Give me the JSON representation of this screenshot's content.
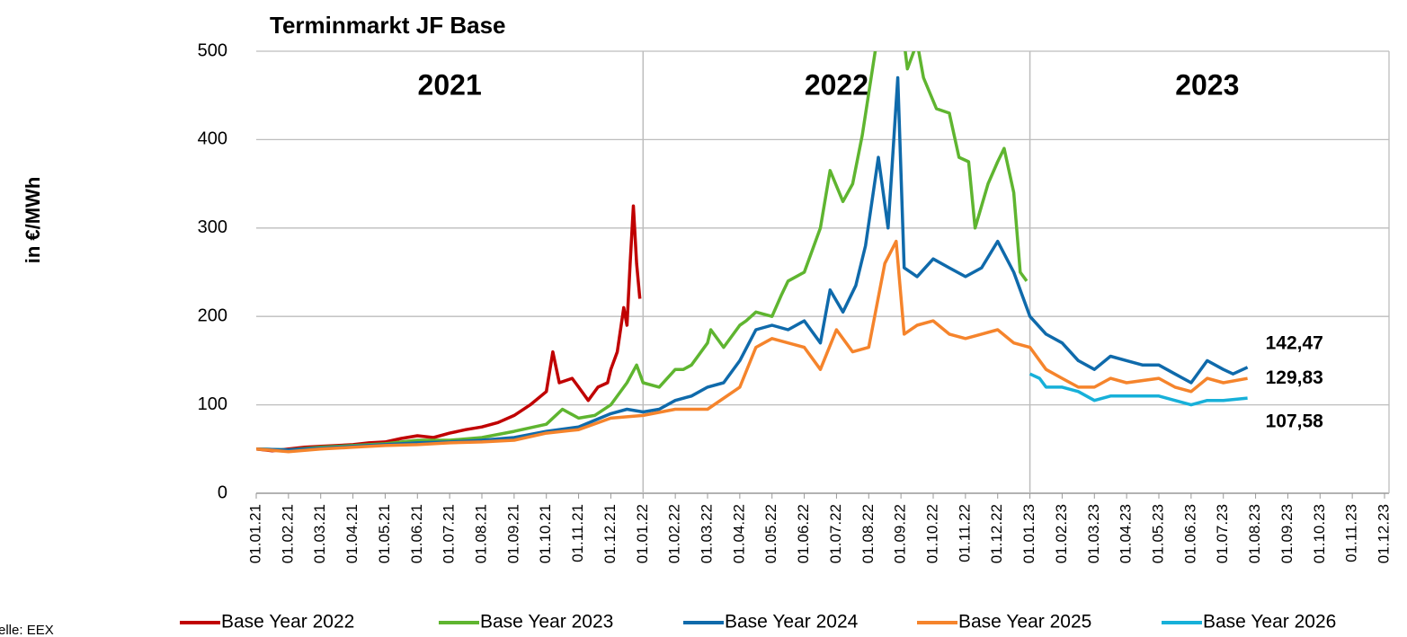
{
  "chart_data": {
    "type": "line",
    "title": "Terminmarkt JF Base",
    "y_label": "in €/MWh",
    "source": "Quelle: EEX",
    "annotations": [
      "2021",
      "2022",
      "2023"
    ],
    "vlines": [
      12,
      24
    ],
    "xlim": [
      0,
      35
    ],
    "xticks": [
      {
        "value": 0,
        "label": "01.01.21"
      },
      {
        "value": 1,
        "label": "01.02.21"
      },
      {
        "value": 2,
        "label": "01.03.21"
      },
      {
        "value": 3,
        "label": "01.04.21"
      },
      {
        "value": 4,
        "label": "01.05.21"
      },
      {
        "value": 5,
        "label": "01.06.21"
      },
      {
        "value": 6,
        "label": "01.07.21"
      },
      {
        "value": 7,
        "label": "01.08.21"
      },
      {
        "value": 8,
        "label": "01.09.21"
      },
      {
        "value": 9,
        "label": "01.10.21"
      },
      {
        "value": 10,
        "label": "01.11.21"
      },
      {
        "value": 11,
        "label": "01.12.21"
      },
      {
        "value": 12,
        "label": "01.01.22"
      },
      {
        "value": 13,
        "label": "01.02.22"
      },
      {
        "value": 14,
        "label": "01.03.22"
      },
      {
        "value": 15,
        "label": "01.04.22"
      },
      {
        "value": 16,
        "label": "01.05.22"
      },
      {
        "value": 17,
        "label": "01.06.22"
      },
      {
        "value": 18,
        "label": "01.07.22"
      },
      {
        "value": 19,
        "label": "01.08.22"
      },
      {
        "value": 20,
        "label": "01.09.22"
      },
      {
        "value": 21,
        "label": "01.10.22"
      },
      {
        "value": 22,
        "label": "01.11.22"
      },
      {
        "value": 23,
        "label": "01.12.22"
      },
      {
        "value": 24,
        "label": "01.01.23"
      },
      {
        "value": 25,
        "label": "01.02.23"
      },
      {
        "value": 26,
        "label": "01.03.23"
      },
      {
        "value": 27,
        "label": "01.04.23"
      },
      {
        "value": 28,
        "label": "01.05.23"
      },
      {
        "value": 29,
        "label": "01.06.23"
      },
      {
        "value": 30,
        "label": "01.07.23"
      },
      {
        "value": 31,
        "label": "01.08.23"
      },
      {
        "value": 32,
        "label": "01.09.23"
      },
      {
        "value": 33,
        "label": "01.10.23"
      },
      {
        "value": 34,
        "label": "01.11.23"
      },
      {
        "value": 35,
        "label": "01.12.23"
      }
    ],
    "ylim": [
      0,
      500
    ],
    "yticks": [
      0,
      100,
      200,
      300,
      400,
      500
    ],
    "grid": true,
    "series": [
      {
        "name": "Base Year 2022",
        "color": "#c00000",
        "x": [
          0,
          0.5,
          1,
          1.5,
          2,
          2.5,
          3,
          3.5,
          4,
          4.5,
          5,
          5.5,
          6,
          6.5,
          7,
          7.5,
          8,
          8.5,
          9,
          9.2,
          9.4,
          9.8,
          10,
          10.3,
          10.6,
          10.9,
          11,
          11.2,
          11.4,
          11.5,
          11.6,
          11.7,
          11.8,
          11.9
        ],
        "values": [
          50,
          48,
          50,
          52,
          53,
          54,
          55,
          57,
          58,
          62,
          65,
          63,
          68,
          72,
          75,
          80,
          88,
          100,
          115,
          160,
          125,
          130,
          120,
          105,
          120,
          125,
          140,
          160,
          210,
          190,
          260,
          325,
          260,
          220
        ]
      },
      {
        "name": "Base Year 2023",
        "color": "#5fb530",
        "x": [
          0,
          1,
          2,
          3,
          4,
          5,
          6,
          7,
          8,
          9,
          9.5,
          10,
          10.5,
          11,
          11.5,
          11.8,
          12,
          12.5,
          13,
          13.25,
          13.5,
          14,
          14.1,
          14.5,
          15,
          15.2,
          15.5,
          16,
          16.3,
          16.5,
          17,
          17.5,
          17.8,
          18.2,
          18.5,
          18.8,
          19.2,
          19.6,
          20,
          20.2,
          20.5,
          20.7,
          21.1,
          21.5,
          21.8,
          22.1,
          22.3,
          22.7,
          23,
          23.2,
          23.5,
          23.7,
          23.9
        ],
        "values": [
          50,
          49,
          52,
          54,
          56,
          60,
          60,
          63,
          70,
          78,
          95,
          85,
          88,
          100,
          125,
          145,
          125,
          120,
          140,
          140,
          145,
          170,
          185,
          165,
          190,
          195,
          205,
          200,
          225,
          240,
          250,
          300,
          365,
          330,
          350,
          405,
          500,
          560,
          540,
          480,
          510,
          470,
          435,
          430,
          380,
          375,
          300,
          350,
          375,
          390,
          340,
          250,
          240
        ]
      },
      {
        "name": "Base Year 2024",
        "color": "#0f6aab",
        "x": [
          0,
          1,
          2,
          3,
          4,
          5,
          6,
          7,
          8,
          9,
          10,
          11,
          11.5,
          12,
          12.5,
          13,
          13.5,
          14,
          14.5,
          15,
          15.5,
          16,
          16.5,
          17,
          17.5,
          17.8,
          18.2,
          18.6,
          18.9,
          19.3,
          19.6,
          19.9,
          20.1,
          20.5,
          21,
          21.5,
          22,
          22.5,
          23,
          23.5,
          23.9,
          24,
          24.5,
          25,
          25.5,
          26,
          26.5,
          27,
          27.5,
          28,
          28.5,
          29,
          29.5,
          30,
          30.3,
          30.75
        ],
        "values": [
          50,
          49,
          51,
          53,
          55,
          57,
          58,
          60,
          63,
          70,
          75,
          90,
          95,
          92,
          95,
          105,
          110,
          120,
          125,
          150,
          185,
          190,
          185,
          195,
          170,
          230,
          205,
          235,
          280,
          380,
          300,
          470,
          255,
          245,
          265,
          255,
          245,
          255,
          285,
          250,
          210,
          200,
          180,
          170,
          150,
          140,
          155,
          150,
          145,
          145,
          135,
          125,
          150,
          140,
          135,
          142.47
        ],
        "value_labels": [
          null,
          null,
          null,
          null,
          null,
          null,
          null,
          null,
          null,
          null,
          null,
          null,
          null,
          null,
          null,
          null,
          null,
          null,
          null,
          null,
          null,
          null,
          null,
          null,
          null,
          null,
          null,
          null,
          null,
          null,
          null,
          null,
          null,
          null,
          null,
          null,
          null,
          null,
          null,
          null,
          null,
          null,
          null,
          null,
          null,
          null,
          null,
          null,
          null,
          null,
          null,
          null,
          null,
          null,
          null,
          "142,47"
        ]
      },
      {
        "name": "Base Year 2025",
        "color": "#f5842c",
        "x": [
          0,
          1,
          2,
          3,
          4,
          5,
          6,
          7,
          8,
          9,
          10,
          11,
          12,
          13,
          14,
          15,
          15.5,
          16,
          17,
          17.5,
          18,
          18.5,
          19,
          19.5,
          19.85,
          20.1,
          20.5,
          21,
          21.5,
          22,
          22.5,
          23,
          23.5,
          24,
          24.5,
          25,
          25.5,
          26,
          26.5,
          27,
          28,
          28.5,
          29,
          29.5,
          30,
          30.75
        ],
        "values": [
          50,
          47,
          50,
          52,
          54,
          55,
          57,
          58,
          60,
          68,
          72,
          85,
          88,
          95,
          95,
          120,
          165,
          175,
          165,
          140,
          185,
          160,
          165,
          260,
          285,
          180,
          190,
          195,
          180,
          175,
          180,
          185,
          170,
          165,
          140,
          130,
          120,
          120,
          130,
          125,
          130,
          120,
          115,
          130,
          125,
          129.83
        ],
        "value_labels": [
          null,
          null,
          null,
          null,
          null,
          null,
          null,
          null,
          null,
          null,
          null,
          null,
          null,
          null,
          null,
          null,
          null,
          null,
          null,
          null,
          null,
          null,
          null,
          null,
          null,
          null,
          null,
          null,
          null,
          null,
          null,
          null,
          null,
          null,
          null,
          null,
          null,
          null,
          null,
          null,
          null,
          null,
          null,
          null,
          null,
          "129,83"
        ]
      },
      {
        "name": "Base Year 2026",
        "color": "#17b0d9",
        "x": [
          24,
          24.3,
          24.5,
          25,
          25.5,
          26,
          26.5,
          27,
          28,
          28.5,
          29,
          29.5,
          30,
          30.75
        ],
        "values": [
          135,
          130,
          120,
          120,
          115,
          105,
          110,
          110,
          110,
          105,
          100,
          105,
          105,
          107.58
        ],
        "value_labels": [
          null,
          null,
          null,
          null,
          null,
          null,
          null,
          null,
          null,
          null,
          null,
          null,
          null,
          "107,58"
        ]
      }
    ]
  }
}
